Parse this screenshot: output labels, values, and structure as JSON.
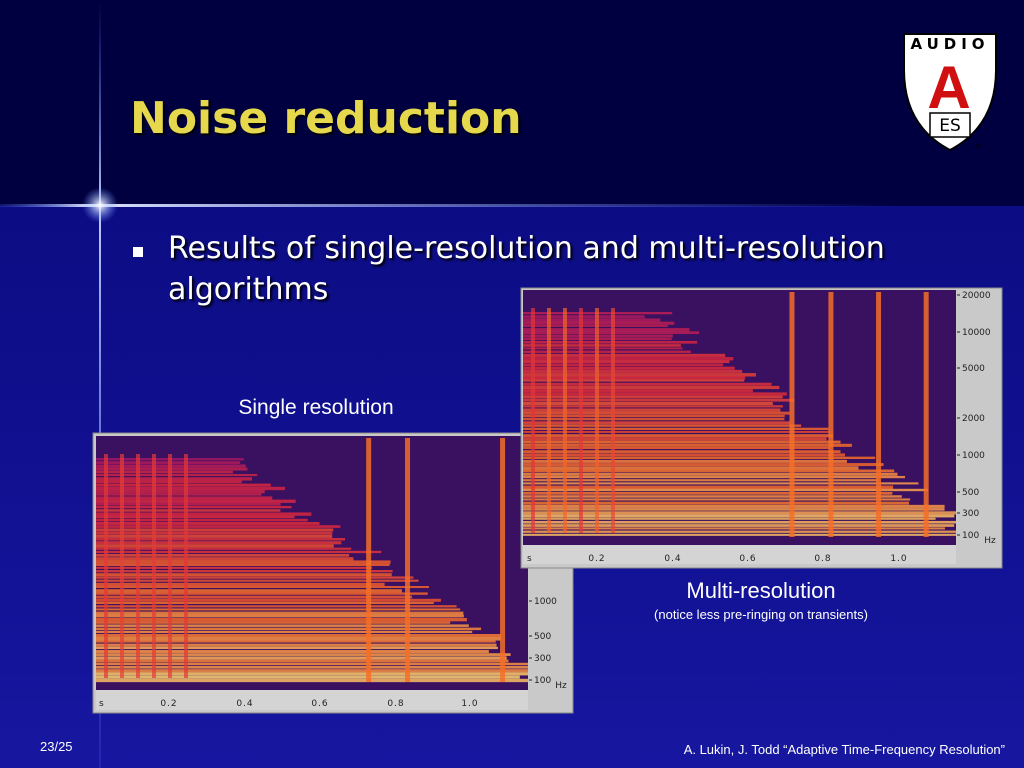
{
  "title": "Noise reduction",
  "bullets": [
    "Results of single-resolution and multi-resolution algorithms"
  ],
  "logo": {
    "top": "AUDIO",
    "mark": "A",
    "bottom": "ES",
    "registered": "®"
  },
  "figures": [
    {
      "caption": "Single resolution",
      "x_axis": [
        "s",
        "0.2",
        "0.4",
        "0.6",
        "0.8",
        "1.0"
      ],
      "y_axis": [
        "1000",
        "500",
        "300",
        "100"
      ],
      "unit": "Hz"
    },
    {
      "caption": "Multi-resolution",
      "note": "(notice less pre-ringing on transients)",
      "x_axis": [
        "s",
        "0.2",
        "0.4",
        "0.6",
        "0.8",
        "1.0"
      ],
      "y_axis": [
        "20000",
        "10000",
        "5000",
        "2000",
        "1000",
        "500",
        "300",
        "100"
      ],
      "unit": "Hz"
    }
  ],
  "footer": {
    "page": "23/25",
    "credit": "A. Lukin, J. Todd “Adaptive Time-Frequency Resolution”"
  }
}
